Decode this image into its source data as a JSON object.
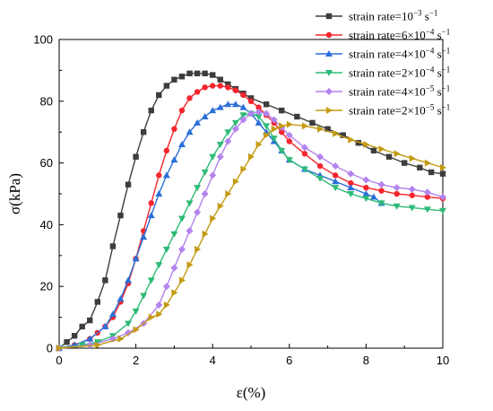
{
  "chart_data": {
    "type": "line",
    "xlabel": "ε(%)",
    "ylabel": "σ(kPa)",
    "xlim": [
      0,
      10
    ],
    "ylim": [
      0,
      100
    ],
    "xticks": [
      "0",
      "2",
      "4",
      "6",
      "8",
      "10"
    ],
    "yticks": [
      "0",
      "20",
      "40",
      "60",
      "80",
      "100"
    ],
    "grid": false,
    "legend_position": "top-right",
    "series": [
      {
        "name": "strain rate=10⁻³ s⁻¹",
        "label_parts": [
          "strain rate=10",
          "−3",
          " s",
          "−1"
        ],
        "color": "#3d3d3d",
        "marker": "square",
        "points": [
          [
            0,
            0
          ],
          [
            0.2,
            2
          ],
          [
            0.4,
            4
          ],
          [
            0.6,
            7
          ],
          [
            0.8,
            9
          ],
          [
            1.0,
            15
          ],
          [
            1.2,
            22
          ],
          [
            1.4,
            33
          ],
          [
            1.6,
            43
          ],
          [
            1.8,
            53
          ],
          [
            2.0,
            62
          ],
          [
            2.2,
            70
          ],
          [
            2.4,
            77
          ],
          [
            2.6,
            82
          ],
          [
            2.8,
            85
          ],
          [
            3.0,
            87
          ],
          [
            3.2,
            88
          ],
          [
            3.4,
            89
          ],
          [
            3.6,
            89
          ],
          [
            3.8,
            89
          ],
          [
            4.0,
            88.5
          ],
          [
            4.2,
            87
          ],
          [
            4.4,
            85.5
          ],
          [
            4.6,
            84
          ],
          [
            4.8,
            82.5
          ],
          [
            5.0,
            81
          ],
          [
            5.4,
            79
          ],
          [
            5.8,
            77
          ],
          [
            6.2,
            75
          ],
          [
            6.6,
            73
          ],
          [
            7.0,
            71
          ],
          [
            7.4,
            69
          ],
          [
            7.8,
            66.5
          ],
          [
            8.2,
            64
          ],
          [
            8.6,
            62
          ],
          [
            9.0,
            60
          ],
          [
            9.4,
            58.5
          ],
          [
            9.7,
            57
          ],
          [
            10.0,
            56.5
          ]
        ]
      },
      {
        "name": "strain rate=6×10⁻⁴ s⁻¹",
        "label_parts": [
          "strain rate=6×10",
          "−4",
          " s",
          "−1"
        ],
        "color": "#f5262d",
        "marker": "circle",
        "points": [
          [
            0,
            0
          ],
          [
            0.4,
            1
          ],
          [
            0.8,
            3
          ],
          [
            1.0,
            5
          ],
          [
            1.2,
            7
          ],
          [
            1.4,
            10
          ],
          [
            1.6,
            15
          ],
          [
            1.8,
            21
          ],
          [
            2.0,
            29
          ],
          [
            2.2,
            38
          ],
          [
            2.4,
            47
          ],
          [
            2.6,
            56
          ],
          [
            2.8,
            64
          ],
          [
            3.0,
            71
          ],
          [
            3.2,
            77
          ],
          [
            3.4,
            81
          ],
          [
            3.6,
            83
          ],
          [
            3.8,
            84.5
          ],
          [
            4.0,
            85
          ],
          [
            4.2,
            85
          ],
          [
            4.4,
            84.5
          ],
          [
            4.6,
            83.5
          ],
          [
            4.8,
            82
          ],
          [
            5.0,
            80
          ],
          [
            5.2,
            78
          ],
          [
            5.4,
            75.5
          ],
          [
            5.6,
            73
          ],
          [
            5.8,
            70
          ],
          [
            6.0,
            67
          ],
          [
            6.4,
            63
          ],
          [
            6.8,
            59
          ],
          [
            7.2,
            56
          ],
          [
            7.6,
            53.5
          ],
          [
            8.0,
            52
          ],
          [
            8.4,
            51
          ],
          [
            8.8,
            50
          ],
          [
            9.2,
            49.5
          ],
          [
            9.6,
            49
          ],
          [
            10.0,
            48.5
          ]
        ]
      },
      {
        "name": "strain rate=4×10⁻⁴ s⁻¹",
        "label_parts": [
          "strain rate=4×10",
          "−4",
          " s",
          "−1"
        ],
        "color": "#2a6fd9",
        "marker": "triangle-up",
        "points": [
          [
            0,
            0
          ],
          [
            0.4,
            1
          ],
          [
            0.8,
            3
          ],
          [
            1.2,
            7
          ],
          [
            1.4,
            11
          ],
          [
            1.6,
            16
          ],
          [
            1.8,
            22
          ],
          [
            2.0,
            29
          ],
          [
            2.2,
            36
          ],
          [
            2.4,
            43
          ],
          [
            2.6,
            50
          ],
          [
            2.8,
            56
          ],
          [
            3.0,
            61
          ],
          [
            3.2,
            66
          ],
          [
            3.4,
            70
          ],
          [
            3.6,
            73
          ],
          [
            3.8,
            75
          ],
          [
            4.0,
            77
          ],
          [
            4.2,
            78
          ],
          [
            4.4,
            79
          ],
          [
            4.6,
            79
          ],
          [
            4.8,
            78
          ],
          [
            5.0,
            76
          ],
          [
            5.2,
            73
          ],
          [
            5.4,
            70
          ],
          [
            5.6,
            67
          ],
          [
            5.8,
            64
          ],
          [
            6.0,
            61
          ],
          [
            6.4,
            58
          ],
          [
            6.8,
            56
          ],
          [
            7.2,
            54
          ],
          [
            7.6,
            52
          ],
          [
            8.0,
            50
          ],
          [
            8.2,
            49
          ],
          [
            8.4,
            47
          ]
        ]
      },
      {
        "name": "strain rate=2×10⁻⁴ s⁻¹",
        "label_parts": [
          "strain rate=2×10",
          "−4",
          " s",
          "−1"
        ],
        "color": "#2dbb77",
        "marker": "triangle-down",
        "points": [
          [
            0,
            0
          ],
          [
            0.6,
            1
          ],
          [
            1.0,
            2
          ],
          [
            1.4,
            4
          ],
          [
            1.8,
            8
          ],
          [
            2.0,
            12
          ],
          [
            2.2,
            17
          ],
          [
            2.4,
            22
          ],
          [
            2.6,
            27
          ],
          [
            2.8,
            32
          ],
          [
            3.0,
            37
          ],
          [
            3.2,
            42
          ],
          [
            3.4,
            47
          ],
          [
            3.6,
            52
          ],
          [
            3.8,
            57
          ],
          [
            4.0,
            62
          ],
          [
            4.2,
            66
          ],
          [
            4.4,
            70
          ],
          [
            4.6,
            73
          ],
          [
            4.8,
            75.5
          ],
          [
            5.0,
            76
          ],
          [
            5.2,
            75
          ],
          [
            5.4,
            72
          ],
          [
            5.6,
            68
          ],
          [
            5.8,
            64
          ],
          [
            6.0,
            61
          ],
          [
            6.4,
            58
          ],
          [
            6.8,
            55
          ],
          [
            7.2,
            52
          ],
          [
            7.6,
            50
          ],
          [
            8.0,
            48.5
          ],
          [
            8.4,
            47
          ],
          [
            8.8,
            46
          ],
          [
            9.2,
            45.5
          ],
          [
            9.6,
            45
          ],
          [
            10.0,
            44.5
          ]
        ]
      },
      {
        "name": "strain rate=4×10⁻⁵ s⁻¹",
        "label_parts": [
          "strain rate=4×10",
          "−5",
          " s",
          "−1"
        ],
        "color": "#b383ee",
        "marker": "diamond",
        "points": [
          [
            0,
            0
          ],
          [
            0.8,
            1
          ],
          [
            1.4,
            3
          ],
          [
            1.8,
            5
          ],
          [
            2.2,
            8
          ],
          [
            2.6,
            14
          ],
          [
            2.8,
            20
          ],
          [
            3.0,
            26
          ],
          [
            3.2,
            32
          ],
          [
            3.4,
            38
          ],
          [
            3.6,
            44
          ],
          [
            3.8,
            50
          ],
          [
            4.0,
            56
          ],
          [
            4.2,
            62
          ],
          [
            4.4,
            67
          ],
          [
            4.6,
            71
          ],
          [
            4.8,
            74
          ],
          [
            5.0,
            76
          ],
          [
            5.2,
            76.5
          ],
          [
            5.4,
            76
          ],
          [
            5.6,
            74
          ],
          [
            5.8,
            71.5
          ],
          [
            6.0,
            69
          ],
          [
            6.4,
            65
          ],
          [
            6.8,
            62
          ],
          [
            7.2,
            59
          ],
          [
            7.6,
            56.5
          ],
          [
            8.0,
            54.5
          ],
          [
            8.4,
            53
          ],
          [
            8.8,
            52
          ],
          [
            9.2,
            51.5
          ],
          [
            9.6,
            50.5
          ],
          [
            10.0,
            49
          ]
        ]
      },
      {
        "name": "strain rate=2×10⁻⁵ s⁻¹",
        "label_parts": [
          "strain rate=2×10",
          "−5",
          " s",
          "−1"
        ],
        "color": "#c49a11",
        "marker": "triangle-right",
        "points": [
          [
            0,
            0
          ],
          [
            1.0,
            1
          ],
          [
            1.6,
            3
          ],
          [
            2.0,
            6
          ],
          [
            2.4,
            10
          ],
          [
            2.6,
            11
          ],
          [
            2.8,
            14
          ],
          [
            3.0,
            18
          ],
          [
            3.2,
            22
          ],
          [
            3.4,
            27
          ],
          [
            3.6,
            32
          ],
          [
            3.8,
            37
          ],
          [
            4.0,
            42
          ],
          [
            4.2,
            46
          ],
          [
            4.4,
            50
          ],
          [
            4.6,
            54
          ],
          [
            4.8,
            58
          ],
          [
            5.0,
            62
          ],
          [
            5.2,
            66
          ],
          [
            5.4,
            69
          ],
          [
            5.6,
            71
          ],
          [
            5.8,
            72
          ],
          [
            6.0,
            72.5
          ],
          [
            6.4,
            72
          ],
          [
            6.8,
            71
          ],
          [
            7.2,
            69.5
          ],
          [
            7.6,
            67.5
          ],
          [
            8.0,
            66
          ],
          [
            8.4,
            64.5
          ],
          [
            8.8,
            63
          ],
          [
            9.2,
            61.5
          ],
          [
            9.6,
            60
          ],
          [
            10.0,
            58.5
          ]
        ]
      }
    ]
  }
}
